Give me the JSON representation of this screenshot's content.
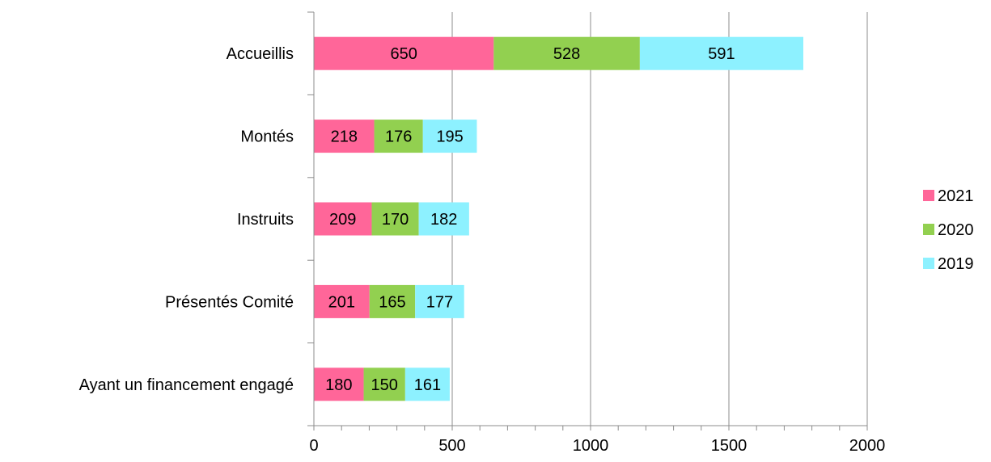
{
  "chart_data": {
    "type": "bar",
    "orientation": "horizontal",
    "stacked": true,
    "categories": [
      "Accueillis",
      "Montés",
      "Instruits",
      "Présentés Comité",
      "Ayant un financement engagé"
    ],
    "series": [
      {
        "name": "2021",
        "values": [
          650,
          218,
          209,
          201,
          180
        ],
        "color": "#FF6699"
      },
      {
        "name": "2020",
        "values": [
          528,
          176,
          170,
          165,
          150
        ],
        "color": "#92D050"
      },
      {
        "name": "2019",
        "values": [
          591,
          195,
          182,
          177,
          161
        ],
        "color": "#8DF1FF"
      }
    ],
    "xlim": [
      0,
      2000
    ],
    "x_ticks": [
      "0",
      "500",
      "1000",
      "1500",
      "2000"
    ],
    "grid": "vertical",
    "legend_position": "right",
    "data_labels": true
  }
}
